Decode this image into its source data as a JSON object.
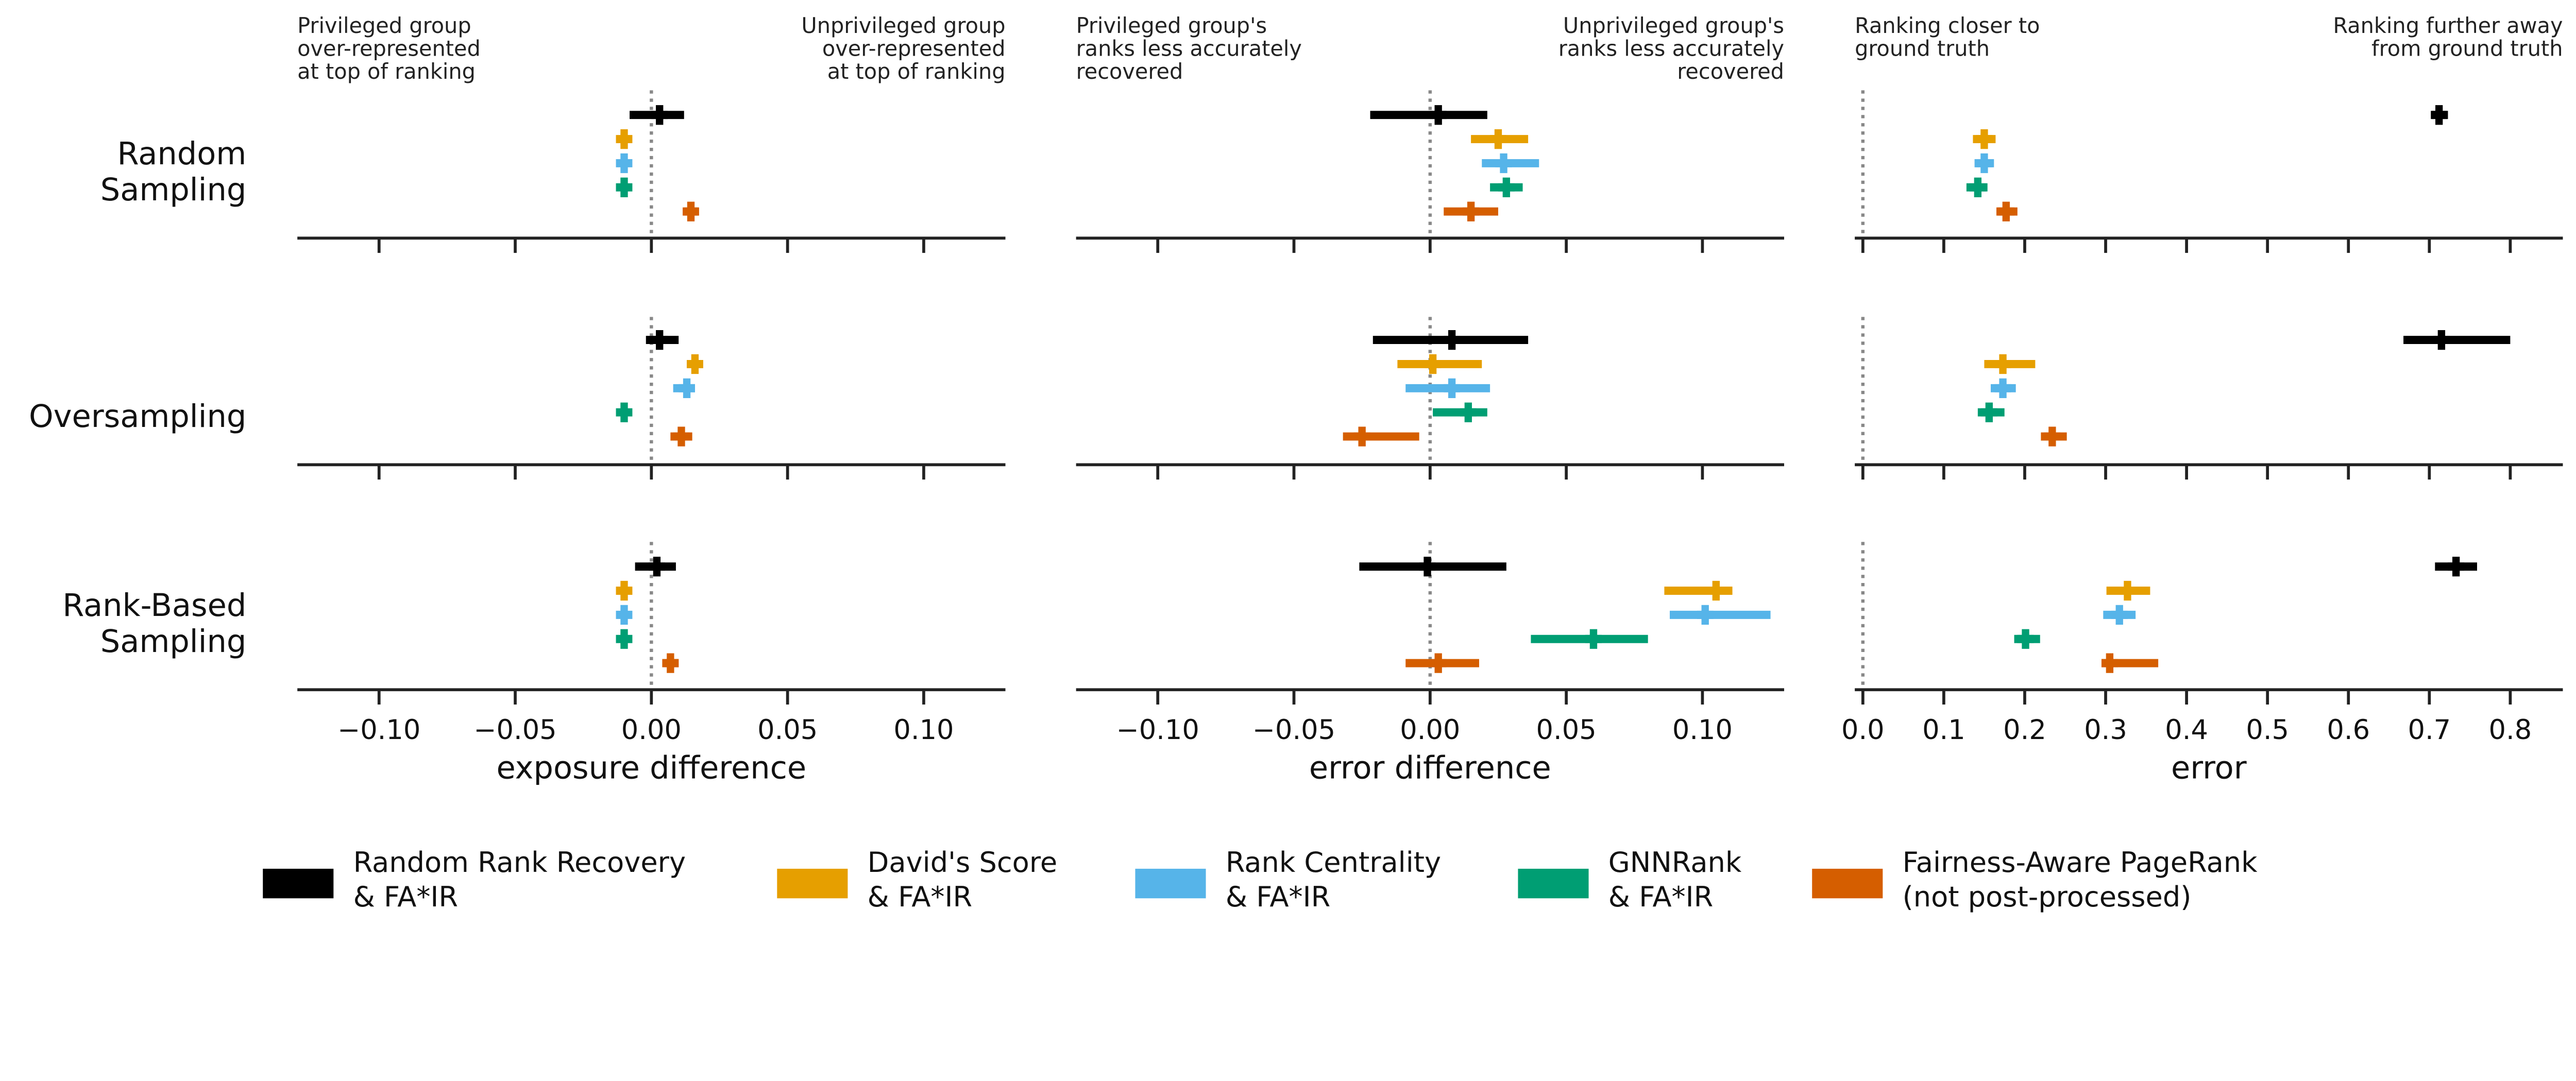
{
  "chart_data": {
    "type": "scatter",
    "subtype": "point-with-interval (forest plot grid)",
    "rows": [
      "Random\nSampling",
      "Oversampling",
      "Rank-Based\nSampling"
    ],
    "series_colors": {
      "Random Rank Recovery & FA*IR": "#000000",
      "David's Score & FA*IR": "#E69F00",
      "Rank Centrality & FA*IR": "#56B4E9",
      "GNNRank & FA*IR": "#009E73",
      "Fairness-Aware PageRank (not post-processed)": "#D55E00"
    },
    "legend": {
      "placement": "bottom",
      "entries": [
        {
          "label": "Random Rank Recovery\n& FA*IR",
          "color": "#000000"
        },
        {
          "label": "David's Score\n& FA*IR",
          "color": "#E69F00"
        },
        {
          "label": "Rank Centrality\n& FA*IR",
          "color": "#56B4E9"
        },
        {
          "label": "GNNRank\n& FA*IR",
          "color": "#009E73"
        },
        {
          "label": "Fairness-Aware PageRank\n(not post-processed)",
          "color": "#D55E00"
        }
      ]
    },
    "panels": [
      {
        "xlabel": "exposure difference",
        "xlim": [
          -0.13,
          0.13
        ],
        "ticks": [
          -0.1,
          -0.05,
          0.0,
          0.05,
          0.1
        ],
        "tick_labels": [
          "−0.10",
          "−0.05",
          "0.00",
          "0.05",
          "0.10"
        ],
        "reference_line": 0,
        "annotation_left": "Privileged group\nover-represented\nat top of ranking",
        "annotation_right": "Unprivileged group\nover-represented\nat top of ranking",
        "rows": [
          [
            [
              0.003,
              -0.008,
              0.012
            ],
            [
              -0.01,
              -0.011,
              -0.009
            ],
            [
              -0.01,
              -0.011,
              -0.009
            ],
            [
              -0.01,
              -0.011,
              -0.009
            ],
            [
              0.0145,
              0.012,
              0.017
            ]
          ],
          [
            [
              0.003,
              -0.002,
              0.01
            ],
            [
              0.016,
              0.013,
              0.019
            ],
            [
              0.013,
              0.008,
              0.016
            ],
            [
              -0.01,
              -0.011,
              -0.009
            ],
            [
              0.011,
              0.007,
              0.015
            ]
          ],
          [
            [
              0.002,
              -0.006,
              0.009
            ],
            [
              -0.01,
              -0.011,
              -0.009
            ],
            [
              -0.01,
              -0.011,
              -0.009
            ],
            [
              -0.01,
              -0.011,
              -0.009
            ],
            [
              0.007,
              0.005,
              0.01
            ]
          ]
        ]
      },
      {
        "xlabel": "error difference",
        "xlim": [
          -0.13,
          0.13
        ],
        "ticks": [
          -0.1,
          -0.05,
          0.0,
          0.05,
          0.1
        ],
        "tick_labels": [
          "−0.10",
          "−0.05",
          "0.00",
          "0.05",
          "0.10"
        ],
        "reference_line": 0,
        "annotation_left": "Privileged group's\nranks less accurately\nrecovered",
        "annotation_right": "Unprivileged group's\nranks less accurately\nrecovered",
        "rows": [
          [
            [
              0.003,
              -0.022,
              0.021
            ],
            [
              0.025,
              0.015,
              0.036
            ],
            [
              0.027,
              0.019,
              0.04
            ],
            [
              0.028,
              0.022,
              0.034
            ],
            [
              0.015,
              0.005,
              0.025
            ]
          ],
          [
            [
              0.008,
              -0.021,
              0.036
            ],
            [
              0.001,
              -0.012,
              0.019
            ],
            [
              0.008,
              -0.009,
              0.022
            ],
            [
              0.014,
              0.001,
              0.021
            ],
            [
              -0.025,
              -0.032,
              -0.004
            ]
          ],
          [
            [
              -0.001,
              -0.026,
              0.028
            ],
            [
              0.105,
              0.086,
              0.111
            ],
            [
              0.101,
              0.088,
              0.125
            ],
            [
              0.06,
              0.037,
              0.08
            ],
            [
              0.003,
              -0.009,
              0.018
            ]
          ]
        ]
      },
      {
        "xlabel": "error",
        "xlim": [
          -0.01,
          0.865
        ],
        "ticks": [
          0.0,
          0.1,
          0.2,
          0.3,
          0.4,
          0.5,
          0.6,
          0.7,
          0.8
        ],
        "tick_labels": [
          "0.0",
          "0.1",
          "0.2",
          "0.3",
          "0.4",
          "0.5",
          "0.6",
          "0.7",
          "0.8"
        ],
        "reference_line": 0,
        "annotation_left": "Ranking closer to\nground truth",
        "annotation_right": "Ranking further away\nfrom ground truth",
        "rows": [
          [
            [
              0.712,
              0.703,
              0.723
            ],
            [
              0.15,
              0.136,
              0.164
            ],
            [
              0.15,
              0.138,
              0.162
            ],
            [
              0.142,
              0.128,
              0.154
            ],
            [
              0.177,
              0.165,
              0.191
            ]
          ],
          [
            [
              0.715,
              0.668,
              0.8
            ],
            [
              0.173,
              0.15,
              0.213
            ],
            [
              0.173,
              0.158,
              0.189
            ],
            [
              0.156,
              0.142,
              0.175
            ],
            [
              0.234,
              0.22,
              0.252
            ]
          ],
          [
            [
              0.733,
              0.707,
              0.759
            ],
            [
              0.327,
              0.301,
              0.355
            ],
            [
              0.317,
              0.297,
              0.337
            ],
            [
              0.201,
              0.187,
              0.219
            ],
            [
              0.305,
              0.295,
              0.365
            ]
          ]
        ]
      }
    ]
  }
}
